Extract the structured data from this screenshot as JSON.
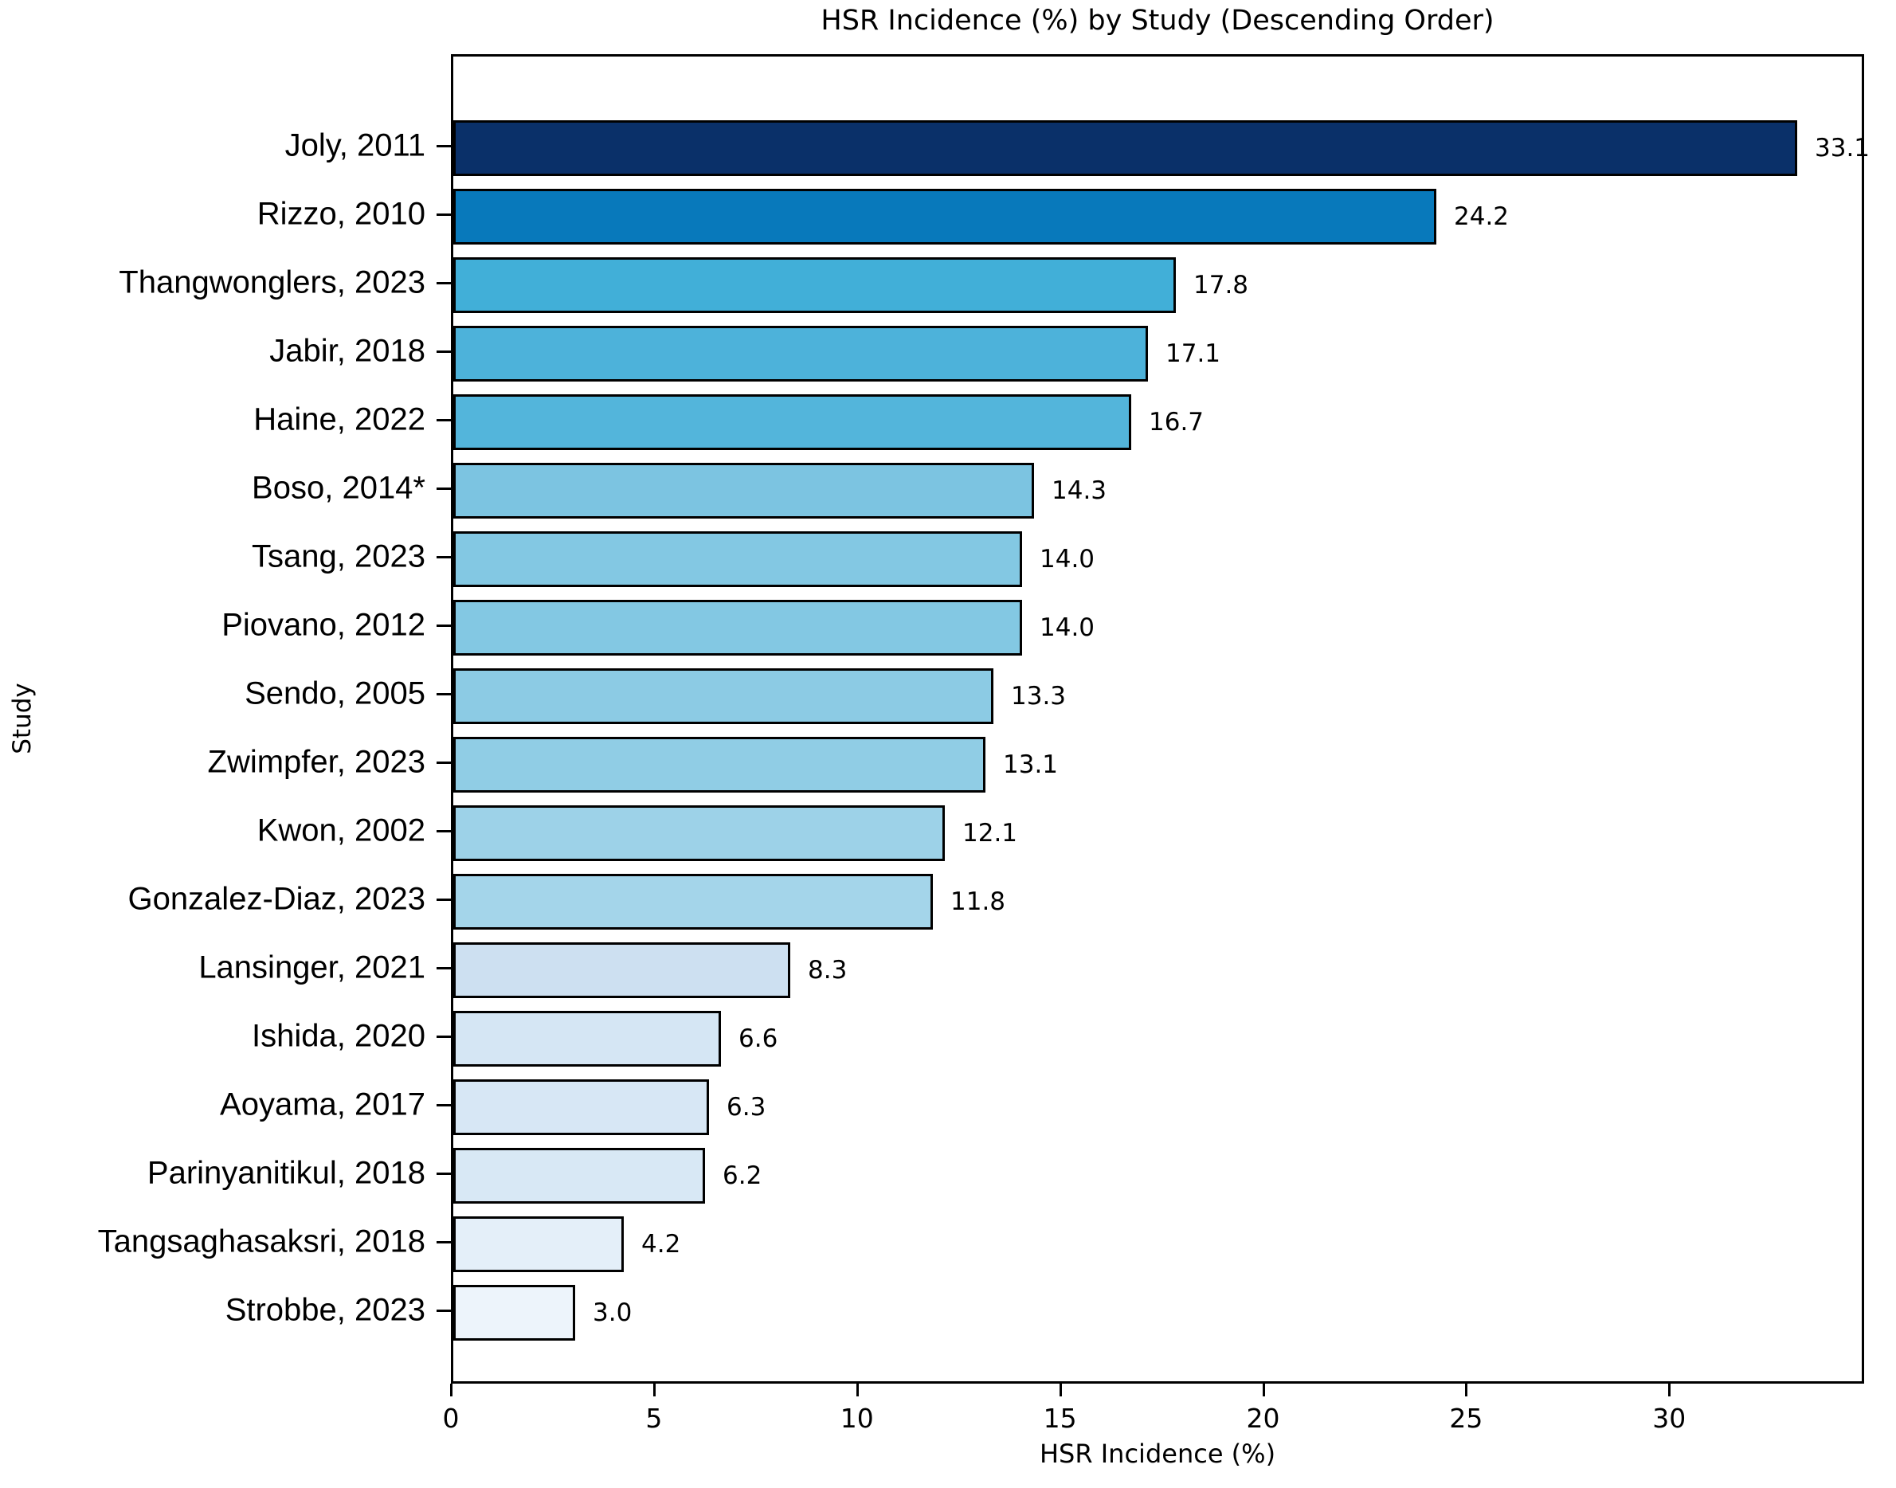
{
  "chart_data": {
    "type": "bar",
    "orientation": "horizontal",
    "title": "HSR Incidence (%) by Study (Descending Order)",
    "xlabel": "HSR Incidence (%)",
    "ylabel": "Study",
    "categories": [
      "Joly, 2011",
      "Rizzo, 2010",
      "Thangwonglers, 2023",
      "Jabir, 2018",
      "Haine, 2022",
      "Boso, 2014*",
      "Tsang, 2023",
      "Piovano, 2012",
      "Sendo, 2005",
      "Zwimpfer, 2023",
      "Kwon, 2002",
      "Gonzalez-Diaz, 2023",
      "Lansinger, 2021",
      "Ishida, 2020",
      "Aoyama, 2017",
      "Parinyanitikul, 2018",
      "Tangsaghasaksri, 2018",
      "Strobbe, 2023"
    ],
    "values": [
      33.1,
      24.2,
      17.8,
      17.1,
      16.7,
      14.3,
      14.0,
      14.0,
      13.3,
      13.1,
      12.1,
      11.8,
      8.3,
      6.6,
      6.3,
      6.2,
      4.2,
      3.0
    ],
    "value_labels": [
      "33.1",
      "24.2",
      "17.8",
      "17.1",
      "16.7",
      "14.3",
      "14.0",
      "14.0",
      "13.3",
      "13.1",
      "12.1",
      "11.8",
      "8.3",
      "6.6",
      "6.3",
      "6.2",
      "4.2",
      "3.0"
    ],
    "bar_colors": [
      "#0a3069",
      "#0879bb",
      "#41afd8",
      "#4db2da",
      "#53b5db",
      "#7cc4e1",
      "#83c8e3",
      "#83c8e3",
      "#8ccbe4",
      "#90cde5",
      "#9dd2e8",
      "#a4d5ea",
      "#cde0f1",
      "#d5e6f4",
      "#d7e7f5",
      "#d8e8f5",
      "#e4eff9",
      "#edf4fb"
    ],
    "bar_edge_color": "#000000",
    "xlim": [
      0,
      34.8
    ],
    "xticks": [
      0,
      5,
      10,
      15,
      20,
      25,
      30
    ],
    "grid": false,
    "legend": null
  }
}
